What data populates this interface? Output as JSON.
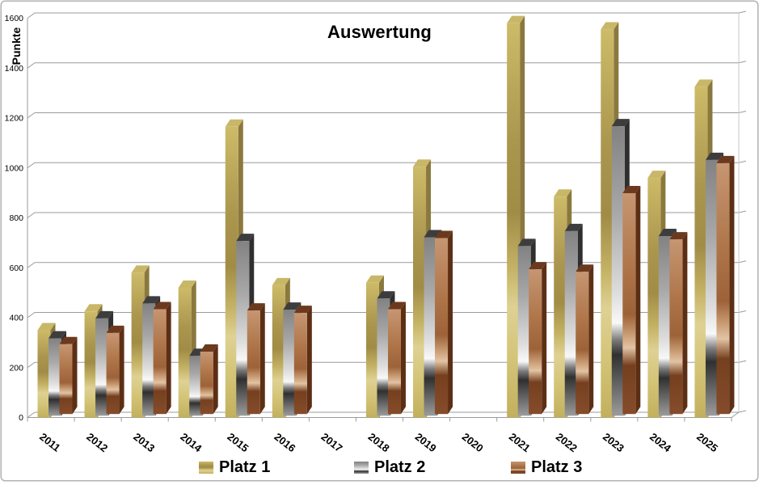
{
  "window": {
    "background": "#ffffff",
    "border_color": "#b2b2b2"
  },
  "chart_data": {
    "type": "bar",
    "style": "3d-metallic-bars",
    "title": "Auswertung",
    "ylabel": "Punkte",
    "xlabel": "",
    "categories": [
      "2011",
      "2012",
      "2013",
      "2014",
      "2015",
      "2016",
      "2017",
      "2018",
      "2019",
      "2020",
      "2021",
      "2022",
      "2023",
      "2024",
      "2025"
    ],
    "series": [
      {
        "name": "Platz 1",
        "color_key": "gold",
        "values": [
          350,
          425,
          580,
          520,
          1165,
          530,
          null,
          540,
          1005,
          null,
          1580,
          885,
          1555,
          960,
          1325
        ]
      },
      {
        "name": "Platz 2",
        "color_key": "silver",
        "values": [
          310,
          390,
          450,
          240,
          700,
          425,
          null,
          470,
          715,
          null,
          680,
          740,
          1160,
          720,
          1025
        ]
      },
      {
        "name": "Platz 3",
        "color_key": "bronze",
        "values": [
          280,
          325,
          420,
          250,
          415,
          405,
          null,
          420,
          705,
          null,
          580,
          570,
          885,
          700,
          1005
        ]
      }
    ],
    "ylim": [
      0,
      1600
    ],
    "ytick_step": 200,
    "ytick_labels": [
      "0",
      "200",
      "400",
      "600",
      "800",
      "1000",
      "1200",
      "1400",
      "1600"
    ],
    "grid": true,
    "legend_position": "bottom",
    "axis_color": "#9b9b9b",
    "text_color": "#000000",
    "palette": {
      "gold": {
        "front": [
          [
            0,
            "#cdbb68"
          ],
          [
            0.3,
            "#ab964e"
          ],
          [
            0.48,
            "#a18c46"
          ],
          [
            0.62,
            "#c4b264"
          ],
          [
            0.72,
            "#ded193"
          ],
          [
            0.85,
            "#d4c478"
          ],
          [
            1,
            "#c2b05c"
          ]
        ],
        "top": "#c9b768",
        "side": "#8a783e"
      },
      "silver": {
        "front": [
          [
            0,
            "#828282"
          ],
          [
            0.3,
            "#a8a8a8"
          ],
          [
            0.58,
            "#dedede"
          ],
          [
            0.68,
            "#f8f8f8"
          ],
          [
            0.74,
            "#787878"
          ],
          [
            0.79,
            "#303030"
          ],
          [
            0.88,
            "#5e5e5e"
          ],
          [
            1,
            "#9c9c9c"
          ]
        ],
        "top": "#3d3d3d",
        "side": "#2f2f2f"
      },
      "bronze": {
        "front": [
          [
            0,
            "#c69672"
          ],
          [
            0.35,
            "#ae7448"
          ],
          [
            0.55,
            "#9d6238"
          ],
          [
            0.64,
            "#c99c74"
          ],
          [
            0.7,
            "#e2c3a4"
          ],
          [
            0.78,
            "#75401f"
          ],
          [
            1,
            "#864c2b"
          ]
        ],
        "top": "#6b3a1e",
        "side": "#5c2f15"
      }
    }
  },
  "legend": {
    "items": [
      {
        "label": "Platz 1"
      },
      {
        "label": "Platz 2"
      },
      {
        "label": "Platz 3"
      }
    ]
  }
}
